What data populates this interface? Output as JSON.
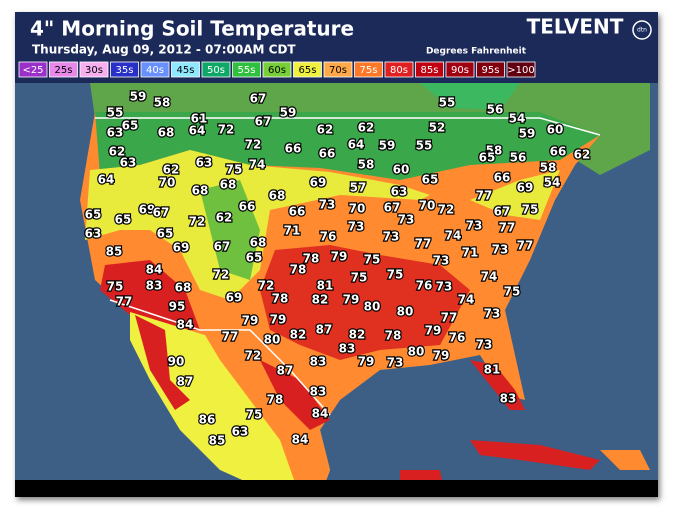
{
  "header": {
    "title": "4\" Morning Soil Temperature",
    "subtitle": "Thursday, Aug 09, 2012 - 07:00AM CDT",
    "units": "Degrees Fahrenheit",
    "brand": "TELVENT",
    "logo": "dtn"
  },
  "legend": [
    {
      "label": "<25",
      "color": "#9a30c8"
    },
    {
      "label": "25s",
      "color": "#e888e8"
    },
    {
      "label": "30s",
      "color": "#f6b0f0"
    },
    {
      "label": "35s",
      "color": "#2830c8"
    },
    {
      "label": "40s",
      "color": "#6890ff"
    },
    {
      "label": "45s",
      "color": "#90e8ff"
    },
    {
      "label": "50s",
      "color": "#10a868"
    },
    {
      "label": "55s",
      "color": "#30c040"
    },
    {
      "label": "60s",
      "color": "#78d038"
    },
    {
      "label": "65s",
      "color": "#f0f040"
    },
    {
      "label": "70s",
      "color": "#ffa848"
    },
    {
      "label": "75s",
      "color": "#ff7828"
    },
    {
      "label": "80s",
      "color": "#e02020"
    },
    {
      "label": "85s",
      "color": "#c00010"
    },
    {
      "label": "90s",
      "color": "#a00010"
    },
    {
      "label": "95s",
      "color": "#800010"
    },
    {
      "label": ">100",
      "color": "#600010"
    }
  ],
  "stations": [
    59,
    58,
    55,
    67,
    59,
    55,
    56,
    54,
    65,
    63,
    64,
    72,
    67,
    62,
    62,
    52,
    59,
    61,
    68,
    62,
    63,
    72,
    66,
    66,
    64,
    59,
    55,
    60,
    66,
    62,
    58,
    65,
    56,
    63,
    75,
    74,
    58,
    60,
    65,
    62,
    70,
    64,
    68,
    68,
    69,
    57,
    63,
    77,
    66,
    69,
    58,
    54,
    68,
    65,
    65,
    69,
    67,
    72,
    62,
    66,
    66,
    73,
    70,
    67,
    73,
    70,
    72,
    67,
    75,
    63,
    85,
    65,
    69,
    67,
    68,
    65,
    71,
    76,
    73,
    73,
    77,
    74,
    73,
    77,
    73,
    77,
    84,
    72,
    78,
    78,
    79,
    75,
    75,
    75,
    73,
    71,
    74,
    75,
    83,
    68,
    81,
    76,
    73,
    75,
    77,
    95,
    69,
    72,
    78,
    82,
    79,
    80,
    74,
    73,
    84,
    79,
    79,
    82,
    87,
    82,
    80,
    77,
    80,
    78,
    79,
    76,
    73,
    77,
    83,
    90,
    72,
    83,
    79,
    73,
    80,
    79,
    81,
    87,
    87,
    83,
    83,
    78,
    75,
    84,
    86,
    63,
    85,
    84
  ]
}
